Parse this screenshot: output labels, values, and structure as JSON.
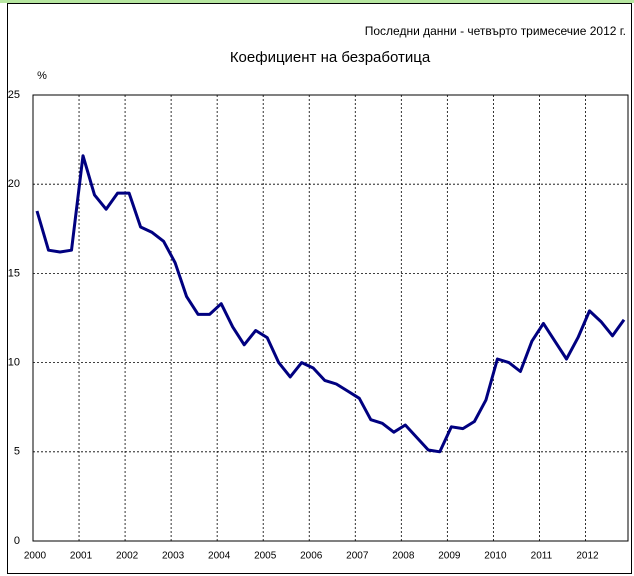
{
  "chart_data": {
    "type": "line",
    "title": "Коефициент на безработица",
    "subtitle": "Последни данни - четвърто тримесечие 2012 г.",
    "y_label": "%",
    "categories": [
      "2000",
      null,
      null,
      null,
      "2001",
      null,
      null,
      null,
      "2002",
      null,
      null,
      null,
      "2003",
      null,
      null,
      null,
      "2004",
      null,
      null,
      null,
      "2005",
      null,
      null,
      null,
      "2006",
      null,
      null,
      null,
      "2007",
      null,
      null,
      null,
      "2008",
      null,
      null,
      null,
      "2009",
      null,
      null,
      null,
      "2010",
      null,
      null,
      null,
      "2011",
      null,
      null,
      null,
      "2012",
      null,
      null,
      null
    ],
    "series": [
      {
        "name": "Коефициент на безработица",
        "color": "#000080",
        "values": [
          18.5,
          16.3,
          16.2,
          16.3,
          21.6,
          19.4,
          18.6,
          19.5,
          19.5,
          17.6,
          17.3,
          16.8,
          15.6,
          13.7,
          12.7,
          12.7,
          13.3,
          12.0,
          11.0,
          11.8,
          11.4,
          10.0,
          9.2,
          10.0,
          9.7,
          9.0,
          8.8,
          8.4,
          8.0,
          6.8,
          6.6,
          6.1,
          6.5,
          5.8,
          5.1,
          5.0,
          6.4,
          6.3,
          6.7,
          7.9,
          10.2,
          10.0,
          9.5,
          11.2,
          12.2,
          11.2,
          10.2,
          11.4,
          12.9,
          12.3,
          11.5,
          12.4
        ]
      }
    ],
    "ylim": [
      0,
      25
    ],
    "yticks": [
      0,
      5,
      10,
      15,
      20,
      25
    ],
    "grid": true
  }
}
